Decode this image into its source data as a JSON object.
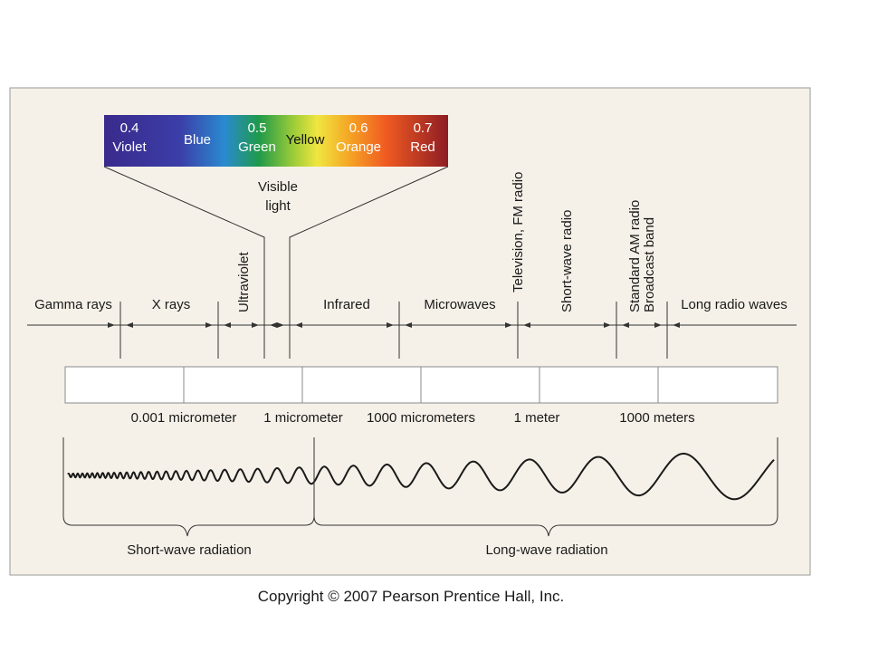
{
  "visible_spectrum": {
    "violet_value": "0.4",
    "violet_name": "Violet",
    "blue_name": "Blue",
    "green_value": "0.5",
    "green_name": "Green",
    "yellow_name": "Yellow",
    "orange_value": "0.6",
    "orange_name": "Orange",
    "red_value": "0.7",
    "red_name": "Red",
    "caption_line1": "Visible",
    "caption_line2": "light",
    "colors": [
      "#3a2a8c",
      "#3b3ea8",
      "#1f9a4a",
      "#f0e640",
      "#f05a22",
      "#8e1c24"
    ]
  },
  "bands": {
    "gamma": "Gamma rays",
    "xray": "X rays",
    "ultraviolet": "Ultraviolet",
    "infrared": "Infrared",
    "microwaves": "Microwaves",
    "tv_fm": "Television, FM radio",
    "shortwave_radio": "Short-wave radio",
    "am_line1": "Standard AM radio",
    "am_line2": "Broadcast band",
    "long_radio": "Long radio waves"
  },
  "scale": {
    "tick1": "0.001 micrometer",
    "tick2": "1 micrometer",
    "tick3": "1000 micrometers",
    "tick4": "1 meter",
    "tick5": "1000 meters"
  },
  "radiation": {
    "short": "Short-wave radiation",
    "long": "Long-wave radiation"
  },
  "copyright": "Copyright © 2007 Pearson Prentice Hall, Inc."
}
